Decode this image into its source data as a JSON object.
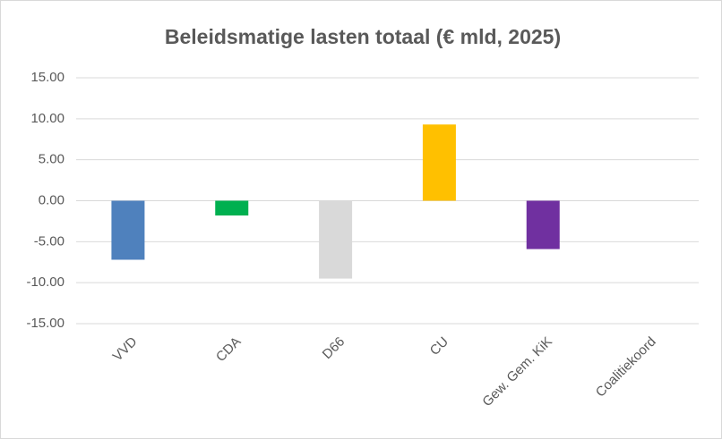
{
  "chart_data": {
    "type": "bar",
    "title": "Beleidsmatige lasten totaal (€ mld, 2025)",
    "categories": [
      "VVD",
      "CDA",
      "D66",
      "CU",
      "Gew. Gem. KiK",
      "Coalitiekoord"
    ],
    "values": [
      -7.2,
      -1.8,
      -9.5,
      9.3,
      -5.9,
      0
    ],
    "colors": [
      "#4f81bd",
      "#00b050",
      "#d9d9d9",
      "#ffc000",
      "#7030a0",
      "#a5a5a5"
    ],
    "ylim": [
      -15,
      15
    ],
    "yticks": [
      {
        "value": -15,
        "label": "-15.00"
      },
      {
        "value": -10,
        "label": "-10.00"
      },
      {
        "value": -5,
        "label": "-5.00"
      },
      {
        "value": 0,
        "label": "0.00"
      },
      {
        "value": 5,
        "label": "5.00"
      },
      {
        "value": 10,
        "label": "10.00"
      },
      {
        "value": 15,
        "label": "15.00"
      }
    ],
    "grid": true
  }
}
